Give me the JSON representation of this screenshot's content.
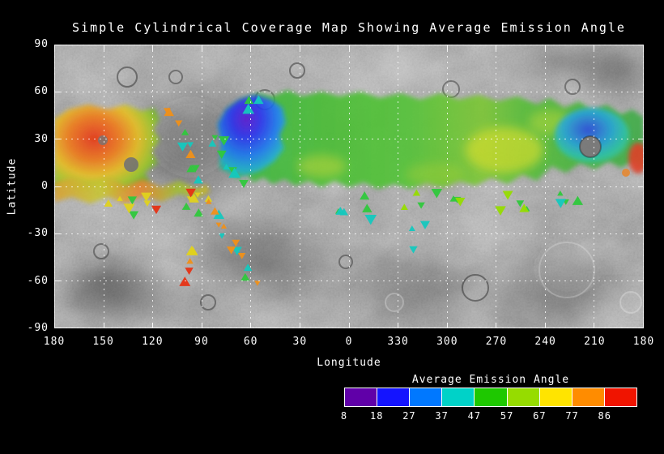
{
  "page": {
    "background_color": "#000000",
    "text_color": "#ffffff"
  },
  "chart": {
    "title": "Simple Cylindrical Coverage Map Showing Average Emission Angle",
    "xlabel": "Longitude",
    "ylabel": "Latitude"
  },
  "chart_data": {
    "type": "heatmap",
    "subtype": "planetary coverage map overlaid on grayscale basemap",
    "title": "Simple Cylindrical Coverage Map Showing Average Emission Angle",
    "xlabel": "Longitude",
    "ylabel": "Latitude",
    "x_tick_labels": [
      180,
      150,
      120,
      90,
      60,
      30,
      0,
      330,
      300,
      270,
      240,
      210,
      180
    ],
    "y_tick_labels": [
      90,
      60,
      30,
      0,
      -30,
      -60,
      -90
    ],
    "xlim_note": "longitude runs 180 -> 0 -> 180, wrapping through 360",
    "ylim": [
      -90,
      90
    ],
    "grid": "white dashed lines every 30 degrees",
    "basemap": "grayscale cratered surface mosaic",
    "colorbar": {
      "title": "Average Emission Angle",
      "tick_labels": [
        8,
        18,
        27,
        37,
        47,
        57,
        67,
        77,
        86
      ],
      "segment_colors": [
        "#6000a8",
        "#1414ff",
        "#0078ff",
        "#00d2c8",
        "#1ec800",
        "#96dc00",
        "#ffe400",
        "#ff8c00",
        "#f01400"
      ]
    },
    "coverage_regions": [
      {
        "lon_range": [
          180,
          120
        ],
        "lat_range": [
          0,
          45
        ],
        "avg_emission_angle_deg": "60-86",
        "appearance": "orange-red core with yellow-green fringe"
      },
      {
        "lon_range": [
          180,
          90
        ],
        "lat_range": [
          -5,
          5
        ],
        "avg_emission_angle_deg": "45-75",
        "appearance": "mottled yellow/orange/green strip along equator"
      },
      {
        "lon_range": [
          90,
          55
        ],
        "lat_range": [
          -60,
          25
        ],
        "avg_emission_angle_deg": "20-80",
        "appearance": "sparse diagonal chains of small triangular footprints"
      },
      {
        "lon_range": [
          75,
          35
        ],
        "lat_range": [
          25,
          55
        ],
        "avg_emission_angle_deg": "8-27",
        "appearance": "blue patch with purple core at top of band"
      },
      {
        "lon_range": [
          70,
          230
        ],
        "lat_range": [
          0,
          58
        ],
        "avg_emission_angle_deg": "37-57",
        "appearance": "broad green band with yellow patches near lon 300-260"
      },
      {
        "lon_range": [
          240,
          200
        ],
        "lat_range": [
          8,
          45
        ],
        "avg_emission_angle_deg": "10-40",
        "appearance": "blue-cyan patches around gray crater gap near lon 212 lat 25"
      },
      {
        "lon_range": [
          195,
          182
        ],
        "lat_range": [
          15,
          30
        ],
        "avg_emission_angle_deg": "77-86",
        "appearance": "small red patch at right edge"
      },
      {
        "lon_range": [
          345,
          265
        ],
        "lat_range": [
          -20,
          0
        ],
        "avg_emission_angle_deg": "27-57",
        "appearance": "scattered green-cyan footprints below equator"
      }
    ]
  }
}
